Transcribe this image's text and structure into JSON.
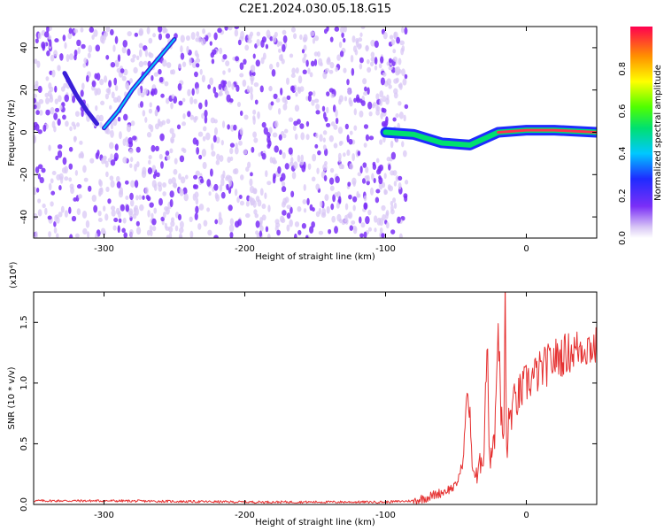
{
  "title": "C2E1.2024.030.05.18.G15",
  "colors": {
    "snr_line": "#e53030",
    "spectrogram_scatter": "#7b2ff7",
    "spectrogram_light": "#d9c8f5"
  },
  "chart_data": [
    {
      "type": "heatmap",
      "xlabel": "Height of straight line (km)",
      "ylabel": "Frequency (Hz)",
      "xlim": [
        -350,
        50
      ],
      "ylim": [
        -50,
        50
      ],
      "x_ticks": [
        -300,
        -200,
        -100,
        0
      ],
      "y_ticks": [
        -40,
        -20,
        0,
        20,
        40
      ],
      "colorbar": {
        "label": "Normalized spectral amplitude",
        "range": [
          0.0,
          1.0
        ],
        "ticks": [
          0.0,
          0.2,
          0.4,
          0.6,
          0.8
        ],
        "tick_labels": [
          "0.0",
          "0.2",
          "0.4",
          "0.6",
          "0.8"
        ],
        "colormap": "rainbow"
      },
      "features": [
        {
          "name": "rising tone",
          "x": [
            -300,
            -290,
            -280,
            -270,
            -260,
            -250
          ],
          "y": [
            2,
            10,
            20,
            28,
            36,
            44
          ]
        },
        {
          "name": "descending track",
          "x": [
            -328,
            -320,
            -312,
            -305
          ],
          "y": [
            28,
            18,
            10,
            4
          ]
        },
        {
          "name": "main signal",
          "x": [
            -100,
            -80,
            -60,
            -40,
            -20,
            0,
            20,
            50
          ],
          "y": [
            0,
            -1,
            -5,
            -6,
            0,
            1,
            1,
            0
          ]
        }
      ],
      "noise_extent_x": [
        -350,
        -85
      ]
    },
    {
      "type": "line",
      "xlabel": "Height of straight line (km)",
      "ylabel": "SNR (10 * v/v)",
      "y_exponent_label": "(x10⁴)",
      "xlim": [
        -350,
        50
      ],
      "ylim": [
        0.0,
        1.75
      ],
      "x_ticks": [
        -300,
        -200,
        -100,
        0
      ],
      "y_ticks": [
        0.0,
        0.5,
        1.0,
        1.5
      ],
      "y_tick_labels": [
        "0.0",
        "0.5",
        "1.0",
        "1.5"
      ],
      "series": [
        {
          "x": [
            -350,
            -300,
            -200,
            -100,
            -80,
            -70,
            -60,
            -50,
            -45,
            -42,
            -40,
            -38,
            -35,
            -30,
            -28,
            -26,
            -24,
            -22,
            -20,
            -18,
            -16,
            -15,
            -14,
            -12,
            -10,
            -5,
            0,
            10,
            20,
            30,
            40,
            50
          ],
          "y": [
            0.03,
            0.03,
            0.02,
            0.02,
            0.03,
            0.06,
            0.1,
            0.15,
            0.35,
            0.95,
            0.65,
            0.3,
            0.2,
            0.5,
            1.35,
            0.4,
            0.5,
            0.65,
            1.55,
            0.7,
            0.55,
            1.75,
            0.45,
            0.7,
            0.8,
            0.9,
            1.0,
            1.1,
            1.2,
            1.25,
            1.3,
            1.3
          ]
        }
      ]
    }
  ]
}
